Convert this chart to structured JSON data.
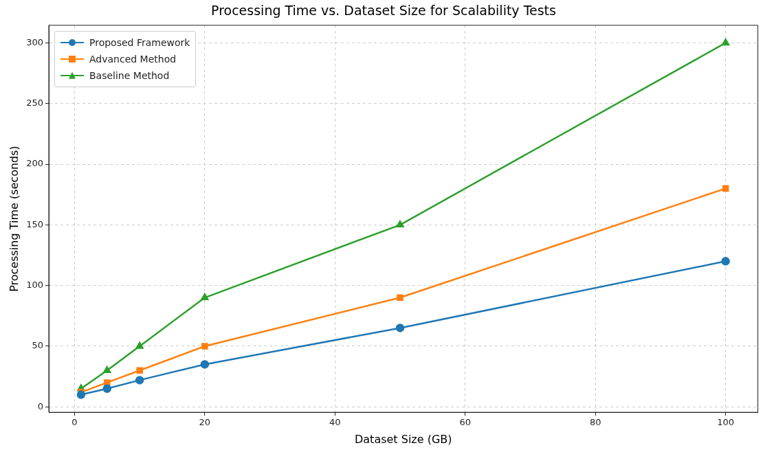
{
  "chart_data": {
    "type": "line",
    "title": "Processing Time vs. Dataset Size for Scalability Tests",
    "xlabel": "Dataset Size (GB)",
    "ylabel": "Processing Time (seconds)",
    "x": [
      1,
      5,
      10,
      20,
      50,
      100
    ],
    "series": [
      {
        "name": "Proposed Framework",
        "color": "#1f77b4",
        "marker": "circle",
        "values": [
          10,
          15,
          22,
          35,
          65,
          120
        ]
      },
      {
        "name": "Advanced Method",
        "color": "#ff7f0e",
        "marker": "square",
        "values": [
          12,
          20,
          30,
          50,
          90,
          180
        ]
      },
      {
        "name": "Baseline Method",
        "color": "#2ca02c",
        "marker": "triangle",
        "values": [
          15,
          30,
          50,
          90,
          150,
          300
        ]
      }
    ],
    "xlim": [
      -3.95,
      104.95
    ],
    "xticks": [
      0,
      20,
      40,
      60,
      80,
      100
    ],
    "ylim": [
      -4.5,
      314.5
    ],
    "yticks": [
      0,
      50,
      100,
      150,
      200,
      250,
      300
    ],
    "grid": true,
    "legend": "top left",
    "line_style": "solid"
  }
}
